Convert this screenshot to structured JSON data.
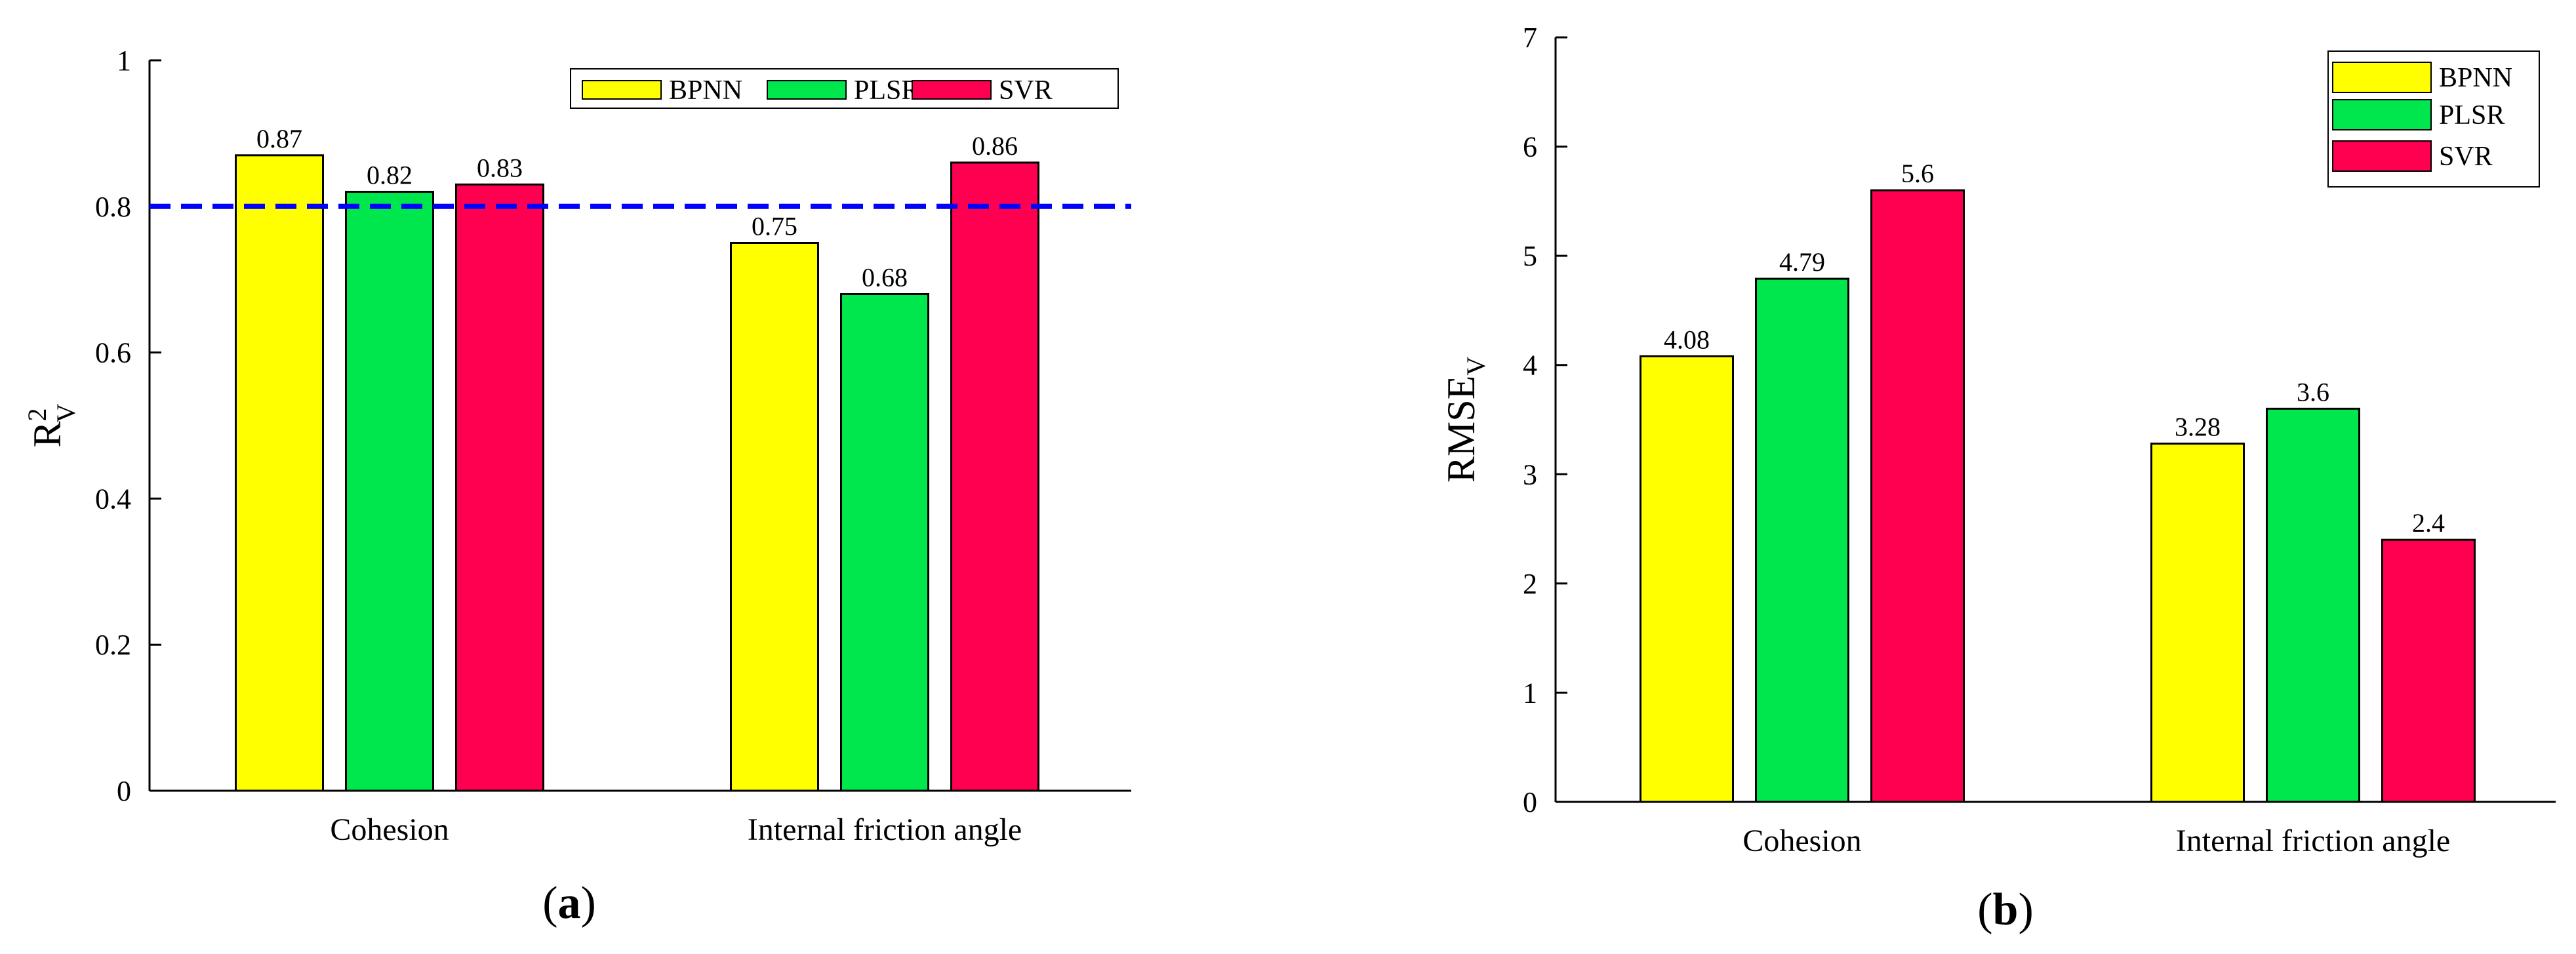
{
  "legend_labels": [
    "BPNN",
    "PLSR",
    "SVR"
  ],
  "series_colors": [
    "#ffff00",
    "#00e64d",
    "#ff0050"
  ],
  "reference_line_color": "#0000ff",
  "chart_data": [
    {
      "type": "bar",
      "panel_label": "a",
      "categories": [
        "Cohesion",
        "Internal friction angle"
      ],
      "series": [
        {
          "name": "BPNN",
          "values": [
            0.87,
            0.75
          ],
          "labels": [
            "0.87",
            "0.75"
          ]
        },
        {
          "name": "PLSR",
          "values": [
            0.82,
            0.68
          ],
          "labels": [
            "0.82",
            "0.68"
          ]
        },
        {
          "name": "SVR",
          "values": [
            0.83,
            0.86
          ],
          "labels": [
            "0.83",
            "0.86"
          ]
        }
      ],
      "ylabel_main": "R",
      "ylabel_sup": "2",
      "ylabel_sub": "V",
      "ylim": [
        0,
        1
      ],
      "yticks": [
        "0",
        "0.2",
        "0.4",
        "0.6",
        "0.8",
        "1"
      ],
      "reference_line": 0.8,
      "legend_position": "top-right"
    },
    {
      "type": "bar",
      "panel_label": "b",
      "categories": [
        "Cohesion",
        "Internal friction angle"
      ],
      "series": [
        {
          "name": "BPNN",
          "values": [
            4.08,
            3.28
          ],
          "labels": [
            "4.08",
            "3.28"
          ]
        },
        {
          "name": "PLSR",
          "values": [
            4.79,
            3.6
          ],
          "labels": [
            "4.79",
            "3.6"
          ]
        },
        {
          "name": "SVR",
          "values": [
            5.6,
            2.4
          ],
          "labels": [
            "5.6",
            "2.4"
          ]
        }
      ],
      "ylabel_main": "RMSE",
      "ylabel_sub": "V",
      "ylim": [
        0,
        7
      ],
      "yticks": [
        "0",
        "1",
        "2",
        "3",
        "4",
        "5",
        "6",
        "7"
      ],
      "legend_position": "top-right"
    }
  ]
}
